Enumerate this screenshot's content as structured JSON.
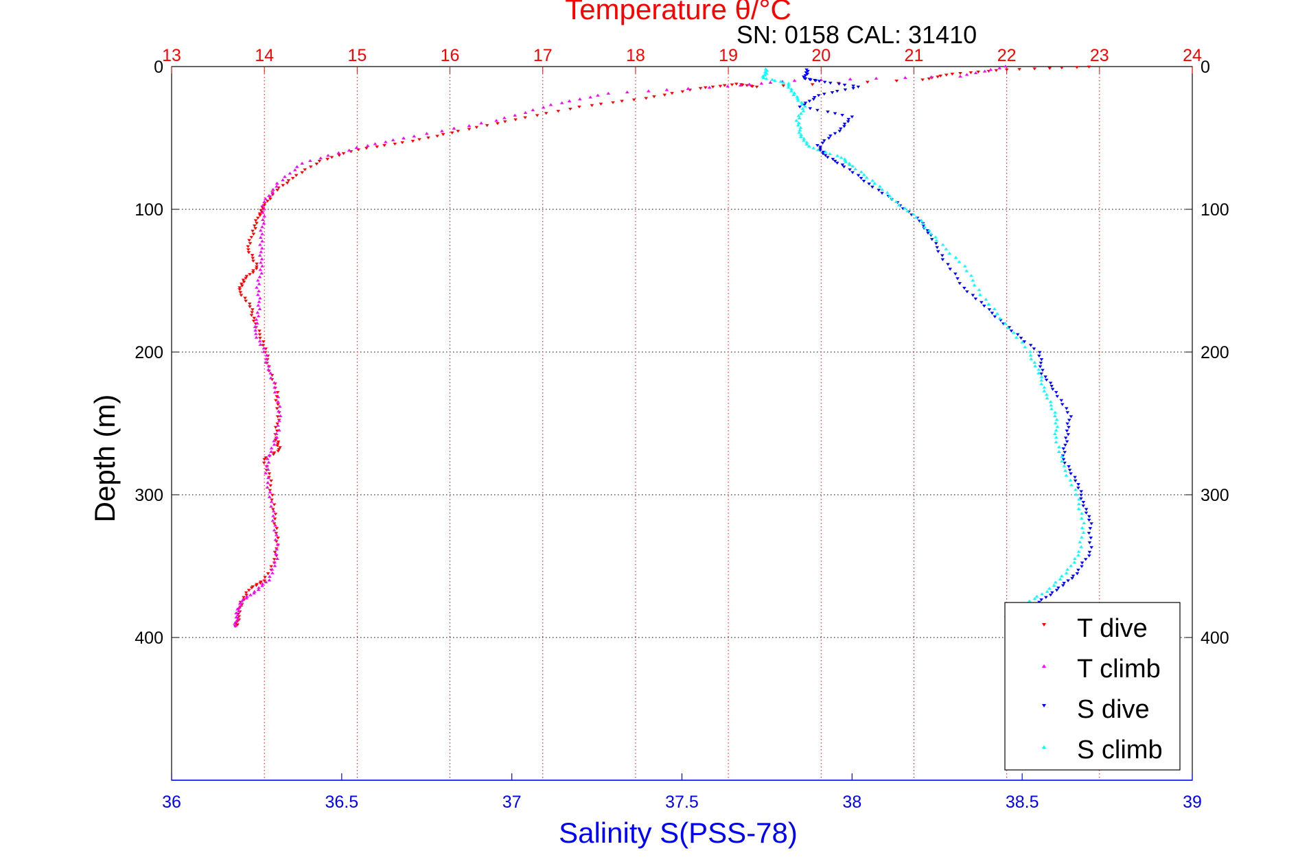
{
  "figure": {
    "top_title": "Temperature θ/°C",
    "serial_caption": "SN: 0158  CAL: 31410"
  },
  "colors": {
    "temperature_axis": "#ff0000",
    "salinity_axis": "#0000ff",
    "t_dive": "#ff0000",
    "t_climb": "#ff00ff",
    "s_dive": "#0000ff",
    "s_climb": "#00ffff",
    "depth_grid": "#000000"
  },
  "chart_data": {
    "type": "scatter",
    "title": "Temperature θ/°C",
    "xlabel": "Salinity S(PSS-78)",
    "x2label": "Temperature θ/°C",
    "ylabel": "Depth (m)",
    "ylim": [
      0,
      500
    ],
    "y_reversed": true,
    "y_ticks": [
      0,
      100,
      200,
      300,
      400
    ],
    "y_ticks_right": [
      0,
      100,
      200,
      300,
      400
    ],
    "salinity_lim": [
      36,
      39
    ],
    "salinity_ticks": [
      "36",
      "36.5",
      "37",
      "37.5",
      "38",
      "38.5",
      "39"
    ],
    "temperature_lim": [
      13,
      24
    ],
    "temperature_ticks": [
      "13",
      "14",
      "15",
      "16",
      "17",
      "18",
      "19",
      "20",
      "21",
      "22",
      "23",
      "24"
    ],
    "grid": "dotted",
    "legend_position": "bottom-right",
    "series": [
      {
        "name": "T dive",
        "axis": "temperature",
        "marker": "triangle-down",
        "color": "#ff0000",
        "points": [
          [
            22.9,
            0
          ],
          [
            22.0,
            2
          ],
          [
            21.4,
            5
          ],
          [
            21.1,
            9
          ],
          [
            19.3,
            14
          ],
          [
            19.1,
            12
          ],
          [
            18.7,
            15
          ],
          [
            18.1,
            22
          ],
          [
            17.4,
            28
          ],
          [
            16.7,
            37
          ],
          [
            16.1,
            45
          ],
          [
            15.6,
            52
          ],
          [
            15.0,
            58
          ],
          [
            14.6,
            66
          ],
          [
            14.3,
            78
          ],
          [
            14.1,
            88
          ],
          [
            14.0,
            97
          ],
          [
            13.94,
            104
          ],
          [
            13.88,
            115
          ],
          [
            13.82,
            128
          ],
          [
            13.93,
            140
          ],
          [
            13.8,
            148
          ],
          [
            13.72,
            156
          ],
          [
            13.85,
            168
          ],
          [
            13.9,
            180
          ],
          [
            14.0,
            195
          ],
          [
            14.05,
            210
          ],
          [
            14.13,
            228
          ],
          [
            14.15,
            245
          ],
          [
            14.12,
            260
          ],
          [
            14.17,
            268
          ],
          [
            14.0,
            275
          ],
          [
            14.06,
            290
          ],
          [
            14.1,
            310
          ],
          [
            14.14,
            330
          ],
          [
            14.12,
            345
          ],
          [
            14.0,
            360
          ],
          [
            13.85,
            365
          ],
          [
            13.75,
            375
          ],
          [
            13.72,
            385
          ],
          [
            13.7,
            392
          ]
        ]
      },
      {
        "name": "T climb",
        "axis": "temperature",
        "marker": "triangle-up",
        "color": "#ff00ff",
        "points": [
          [
            22.0,
            0
          ],
          [
            21.5,
            7
          ],
          [
            19.7,
            10
          ],
          [
            19.0,
            14
          ],
          [
            17.7,
            19
          ],
          [
            17.1,
            27
          ],
          [
            16.5,
            38
          ],
          [
            15.6,
            49
          ],
          [
            15.0,
            57
          ],
          [
            14.4,
            68
          ],
          [
            14.15,
            82
          ],
          [
            14.0,
            95
          ],
          [
            13.98,
            110
          ],
          [
            13.96,
            125
          ],
          [
            13.97,
            140
          ],
          [
            13.93,
            155
          ],
          [
            13.95,
            170
          ],
          [
            13.89,
            185
          ],
          [
            14.0,
            200
          ],
          [
            14.06,
            215
          ],
          [
            14.16,
            235
          ],
          [
            14.16,
            255
          ],
          [
            14.06,
            270
          ],
          [
            14.02,
            285
          ],
          [
            14.07,
            305
          ],
          [
            14.12,
            325
          ],
          [
            14.14,
            345
          ],
          [
            14.04,
            360
          ],
          [
            13.9,
            368
          ],
          [
            13.75,
            375
          ],
          [
            13.71,
            383
          ],
          [
            13.69,
            392
          ]
        ]
      },
      {
        "name": "S dive",
        "axis": "salinity",
        "marker": "triangle-down",
        "color": "#0000ff",
        "points": [
          [
            37.87,
            2
          ],
          [
            37.86,
            8
          ],
          [
            37.9,
            10
          ],
          [
            38.02,
            14
          ],
          [
            37.9,
            20
          ],
          [
            37.85,
            28
          ],
          [
            38.0,
            35
          ],
          [
            37.96,
            45
          ],
          [
            37.9,
            55
          ],
          [
            37.92,
            62
          ],
          [
            37.98,
            70
          ],
          [
            38.05,
            82
          ],
          [
            38.13,
            95
          ],
          [
            38.2,
            108
          ],
          [
            38.23,
            118
          ],
          [
            38.27,
            135
          ],
          [
            38.33,
            155
          ],
          [
            38.4,
            170
          ],
          [
            38.47,
            185
          ],
          [
            38.55,
            200
          ],
          [
            38.56,
            215
          ],
          [
            38.6,
            228
          ],
          [
            38.64,
            245
          ],
          [
            38.63,
            260
          ],
          [
            38.62,
            275
          ],
          [
            38.66,
            290
          ],
          [
            38.68,
            305
          ],
          [
            38.7,
            320
          ],
          [
            38.7,
            340
          ],
          [
            38.66,
            355
          ],
          [
            38.61,
            365
          ],
          [
            38.55,
            375
          ],
          [
            38.48,
            385
          ]
        ]
      },
      {
        "name": "S climb",
        "axis": "salinity",
        "marker": "triangle-up",
        "color": "#00ffff",
        "points": [
          [
            37.75,
            2
          ],
          [
            37.74,
            8
          ],
          [
            37.81,
            12
          ],
          [
            37.83,
            20
          ],
          [
            37.86,
            28
          ],
          [
            37.84,
            38
          ],
          [
            37.85,
            48
          ],
          [
            37.87,
            56
          ],
          [
            37.97,
            64
          ],
          [
            38.0,
            70
          ],
          [
            38.07,
            82
          ],
          [
            38.13,
            95
          ],
          [
            38.2,
            108
          ],
          [
            38.25,
            122
          ],
          [
            38.33,
            140
          ],
          [
            38.38,
            160
          ],
          [
            38.45,
            180
          ],
          [
            38.52,
            200
          ],
          [
            38.55,
            215
          ],
          [
            38.57,
            230
          ],
          [
            38.6,
            245
          ],
          [
            38.6,
            260
          ],
          [
            38.62,
            280
          ],
          [
            38.66,
            300
          ],
          [
            38.68,
            320
          ],
          [
            38.67,
            340
          ],
          [
            38.63,
            355
          ],
          [
            38.57,
            368
          ],
          [
            38.5,
            378
          ],
          [
            38.45,
            385
          ]
        ]
      }
    ]
  }
}
